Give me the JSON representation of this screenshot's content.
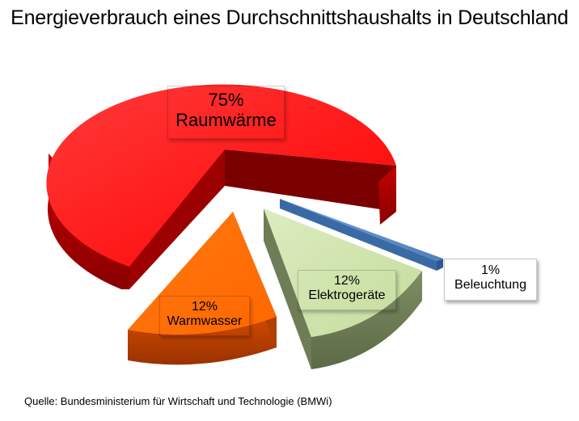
{
  "title": "Energieverbrauch eines Durchschnittshaushalts in Deutschland",
  "source": "Quelle: Bundesministerium für Wirtschaft und Technologie (BMWi)",
  "chart_data": {
    "type": "pie",
    "title": "Energieverbrauch eines Durchschnittshaushalts in Deutschland",
    "categories": [
      "Raumwärme",
      "Warmwasser",
      "Elektrogeräte",
      "Beleuchtung"
    ],
    "values": [
      75,
      12,
      12,
      1
    ],
    "labels": [
      "75%",
      "12%",
      "12%",
      "1%"
    ],
    "colors": [
      "#ff0000",
      "#ff6a00",
      "#c8e0a0",
      "#4f81bd"
    ],
    "exploded": true,
    "legend": "none"
  }
}
